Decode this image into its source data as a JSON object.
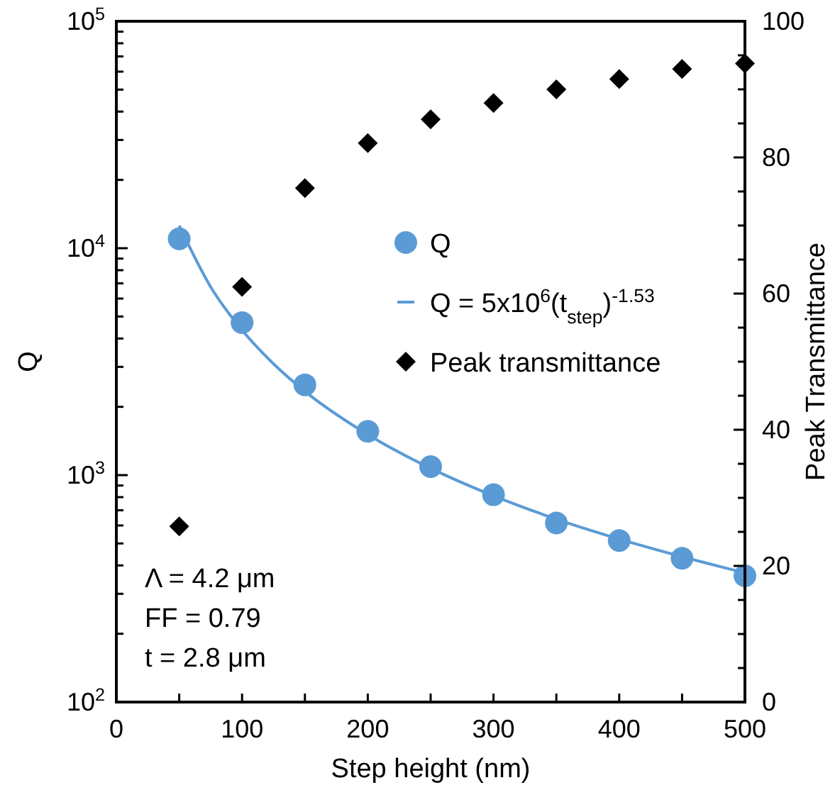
{
  "chart_data": {
    "type": "scatter",
    "xlabel": "Step height (nm)",
    "ylabel": "Q",
    "y2label": "Peak Transmittance",
    "log": "y",
    "grid": false,
    "legend": "right",
    "xlim": [
      0,
      500
    ],
    "xticks": [
      0,
      {
        "value": 50,
        "label": null
      },
      100,
      {
        "value": 150,
        "label": null
      },
      200,
      {
        "value": 250,
        "label": null
      },
      300,
      {
        "value": 350,
        "label": null
      },
      400,
      {
        "value": 450,
        "label": null
      },
      500
    ],
    "ylim": [
      100,
      100000
    ],
    "yticks": [
      {
        "value": 100,
        "label": "10$^{2}$"
      },
      {
        "value": 200,
        "label": null
      },
      {
        "value": 300,
        "label": null
      },
      {
        "value": 400,
        "label": null
      },
      {
        "value": 500,
        "label": null
      },
      {
        "value": 600,
        "label": null
      },
      {
        "value": 700,
        "label": null
      },
      {
        "value": 800,
        "label": null
      },
      {
        "value": 900,
        "label": null
      },
      {
        "value": 1000,
        "label": "10$^{3}$"
      },
      {
        "value": 2000,
        "label": null
      },
      {
        "value": 3000,
        "label": null
      },
      {
        "value": 4000,
        "label": null
      },
      {
        "value": 5000,
        "label": null
      },
      {
        "value": 6000,
        "label": null
      },
      {
        "value": 7000,
        "label": null
      },
      {
        "value": 8000,
        "label": null
      },
      {
        "value": 9000,
        "label": null
      },
      {
        "value": 10000,
        "label": "10$^{4}$"
      },
      {
        "value": 20000,
        "label": null
      },
      {
        "value": 30000,
        "label": null
      },
      {
        "value": 40000,
        "label": null
      },
      {
        "value": 50000,
        "label": null
      },
      {
        "value": 60000,
        "label": null
      },
      {
        "value": 70000,
        "label": null
      },
      {
        "value": 80000,
        "label": null
      },
      {
        "value": 90000,
        "label": null
      },
      {
        "value": 100000,
        "label": "10$^{5}$"
      }
    ],
    "y2lim": [
      0,
      100
    ],
    "y2ticks": [
      0,
      {
        "value": 5,
        "label": null
      },
      {
        "value": 10,
        "label": null
      },
      {
        "value": 15,
        "label": null
      },
      20,
      {
        "value": 25,
        "label": null
      },
      {
        "value": 30,
        "label": null
      },
      {
        "value": 35,
        "label": null
      },
      40,
      {
        "value": 45,
        "label": null
      },
      {
        "value": 50,
        "label": null
      },
      {
        "value": 55,
        "label": null
      },
      60,
      {
        "value": 65,
        "label": null
      },
      {
        "value": 70,
        "label": null
      },
      {
        "value": 75,
        "label": null
      },
      80,
      {
        "value": 85,
        "label": null
      },
      {
        "value": 90,
        "label": null
      },
      {
        "value": 95,
        "label": null
      },
      100
    ],
    "series": [
      {
        "name": "Q",
        "marker": "circle",
        "color": "#5b9bd5",
        "x": [
          50,
          100,
          150,
          200,
          250,
          300,
          350,
          400,
          450,
          500
        ],
        "values": [
          11000,
          4700,
          2500,
          1560,
          1090,
          820,
          615,
          515,
          430,
          360
        ]
      },
      {
        "name": "Q = 5x10$^{6}$(t$_{step}$)$^{-1.53}$",
        "type": "line",
        "marker": "none",
        "color": "#5b9bd5",
        "x": [
          50,
          75,
          100,
          125,
          150,
          200,
          250,
          300,
          350,
          400,
          450,
          500
        ],
        "values": [
          12570,
          6760,
          4355,
          3095,
          2340,
          1510,
          1072,
          811,
          640,
          523,
          437,
          371
        ]
      },
      {
        "name": "Peak transmittance",
        "marker": "diamond",
        "color": "#000000",
        "axis": "y2",
        "x": [
          50,
          100,
          150,
          200,
          250,
          300,
          350,
          400,
          450,
          500
        ],
        "values": [
          25.8,
          61,
          75.5,
          82.1,
          85.6,
          88,
          90,
          91.5,
          93,
          93.8
        ]
      }
    ],
    "annotations": [
      "Λ = 4.2 μm",
      "FF = 0.79",
      "t = 2.8 μm"
    ]
  }
}
